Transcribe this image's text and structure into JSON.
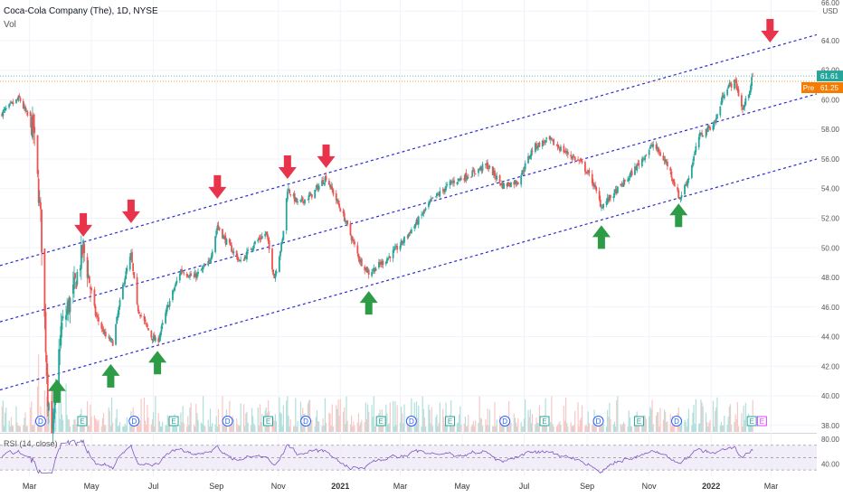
{
  "header": {
    "title": "Coca-Cola Company (The), 1D, NYSE",
    "volume_label": "Vol"
  },
  "currency": "USD",
  "price_labels": {
    "last": "61.61",
    "pre_tag": "Pre",
    "pre": "61.25"
  },
  "rsi_label": "RSI (14, close)",
  "colors": {
    "up": "#26a69a",
    "down": "#ef5350",
    "channel": "#2b2bd0",
    "arrow_up": "#2e9c47",
    "arrow_down": "#e8334a",
    "rsi": "#7e57c2",
    "last_price": "#26a69a",
    "pre_price": "#f57c00"
  },
  "chart_data": {
    "type": "candlestick",
    "title": "Coca-Cola Company (The), 1D, NYSE",
    "price_axis": {
      "ticks": [
        "66.00",
        "64.00",
        "62.00",
        "60.00",
        "58.00",
        "56.00",
        "54.00",
        "52.00",
        "50.00",
        "48.00",
        "46.00",
        "44.00",
        "42.00",
        "40.00",
        "38.00"
      ],
      "range": [
        37.5,
        66.5
      ]
    },
    "rsi_axis": {
      "ticks": [
        "80.00",
        "40.00"
      ]
    },
    "time_axis": {
      "ticks": [
        "Mar",
        "May",
        "Jul",
        "Sep",
        "Nov",
        "2021",
        "Mar",
        "May",
        "Jul",
        "Sep",
        "Nov",
        "2022",
        "Mar"
      ]
    },
    "price_path": [
      [
        "2020-02-01",
        59.0
      ],
      [
        "2020-02-20",
        60.1
      ],
      [
        "2020-03-05",
        58.0
      ],
      [
        "2020-03-12",
        52.0
      ],
      [
        "2020-03-19",
        40.0
      ],
      [
        "2020-03-24",
        37.6
      ],
      [
        "2020-04-01",
        44.5
      ],
      [
        "2020-04-13",
        47.0
      ],
      [
        "2020-04-23",
        50.0
      ],
      [
        "2020-05-05",
        45.5
      ],
      [
        "2020-05-15",
        44.0
      ],
      [
        "2020-05-22",
        43.6
      ],
      [
        "2020-06-02",
        47.8
      ],
      [
        "2020-06-09",
        49.5
      ],
      [
        "2020-06-15",
        46.0
      ],
      [
        "2020-06-29",
        44.0
      ],
      [
        "2020-07-05",
        43.6
      ],
      [
        "2020-07-15",
        46.0
      ],
      [
        "2020-07-28",
        48.5
      ],
      [
        "2020-08-10",
        48.0
      ],
      [
        "2020-08-25",
        49.0
      ],
      [
        "2020-09-02",
        51.5
      ],
      [
        "2020-09-10",
        50.5
      ],
      [
        "2020-09-25",
        49.0
      ],
      [
        "2020-10-08",
        50.3
      ],
      [
        "2020-10-20",
        51.0
      ],
      [
        "2020-10-28",
        48.0
      ],
      [
        "2020-11-05",
        50.5
      ],
      [
        "2020-11-10",
        54.0
      ],
      [
        "2020-11-20",
        53.0
      ],
      [
        "2020-12-03",
        53.5
      ],
      [
        "2020-12-18",
        54.8
      ],
      [
        "2021-01-05",
        52.0
      ],
      [
        "2021-01-20",
        49.2
      ],
      [
        "2021-01-29",
        48.3
      ],
      [
        "2021-02-15",
        49.2
      ],
      [
        "2021-03-01",
        50.2
      ],
      [
        "2021-03-15",
        51.5
      ],
      [
        "2021-04-01",
        53.2
      ],
      [
        "2021-04-20",
        54.4
      ],
      [
        "2021-05-10",
        55.0
      ],
      [
        "2021-05-25",
        55.6
      ],
      [
        "2021-06-10",
        54.2
      ],
      [
        "2021-06-25",
        54.5
      ],
      [
        "2021-07-10",
        56.8
      ],
      [
        "2021-07-25",
        57.3
      ],
      [
        "2021-08-10",
        56.5
      ],
      [
        "2021-08-25",
        55.8
      ],
      [
        "2021-09-05",
        54.7
      ],
      [
        "2021-09-15",
        52.8
      ],
      [
        "2021-09-25",
        53.5
      ],
      [
        "2021-10-10",
        54.6
      ],
      [
        "2021-10-25",
        56.0
      ],
      [
        "2021-11-05",
        57.0
      ],
      [
        "2021-11-20",
        55.5
      ],
      [
        "2021-12-01",
        53.3
      ],
      [
        "2021-12-10",
        54.8
      ],
      [
        "2021-12-20",
        57.5
      ],
      [
        "2022-01-05",
        58.5
      ],
      [
        "2022-01-15",
        60.8
      ],
      [
        "2022-01-25",
        61.2
      ],
      [
        "2022-02-01",
        59.3
      ],
      [
        "2022-02-07",
        60.5
      ],
      [
        "2022-02-11",
        61.6
      ]
    ],
    "channel_lines": [
      {
        "name": "upper",
        "start": [
          "2020-02-01",
          48.8
        ],
        "end": [
          "2022-04-15",
          64.4
        ]
      },
      {
        "name": "middle",
        "start": [
          "2020-02-01",
          45.0
        ],
        "end": [
          "2022-04-15",
          60.4
        ]
      },
      {
        "name": "lower",
        "start": [
          "2020-02-01",
          40.4
        ],
        "end": [
          "2022-04-15",
          56.0
        ]
      }
    ],
    "markers_down": [
      "2020-04-23",
      "2020-06-09",
      "2020-09-02",
      "2020-11-10",
      "2020-12-18",
      "2022-02-28"
    ],
    "markers_up": [
      "2020-03-28",
      "2020-05-20",
      "2020-07-05",
      "2021-01-29",
      "2021-09-15",
      "2021-11-30"
    ],
    "events": [
      {
        "date": "2020-03-12",
        "type": "D"
      },
      {
        "date": "2020-04-22",
        "type": "E"
      },
      {
        "date": "2020-06-12",
        "type": "D"
      },
      {
        "date": "2020-07-21",
        "type": "E"
      },
      {
        "date": "2020-09-12",
        "type": "D"
      },
      {
        "date": "2020-10-22",
        "type": "E"
      },
      {
        "date": "2020-11-28",
        "type": "D"
      },
      {
        "date": "2021-02-10",
        "type": "E"
      },
      {
        "date": "2021-03-12",
        "type": "D"
      },
      {
        "date": "2021-04-19",
        "type": "E"
      },
      {
        "date": "2021-06-12",
        "type": "D"
      },
      {
        "date": "2021-07-21",
        "type": "E"
      },
      {
        "date": "2021-09-12",
        "type": "D"
      },
      {
        "date": "2021-10-22",
        "type": "E"
      },
      {
        "date": "2021-11-28",
        "type": "D"
      },
      {
        "date": "2022-02-10",
        "type": "E"
      }
    ],
    "rsi_range": [
      20,
      90
    ],
    "rsi_levels": [
      70,
      50,
      30
    ],
    "last_price": 61.61,
    "pre_market_price": 61.25
  }
}
